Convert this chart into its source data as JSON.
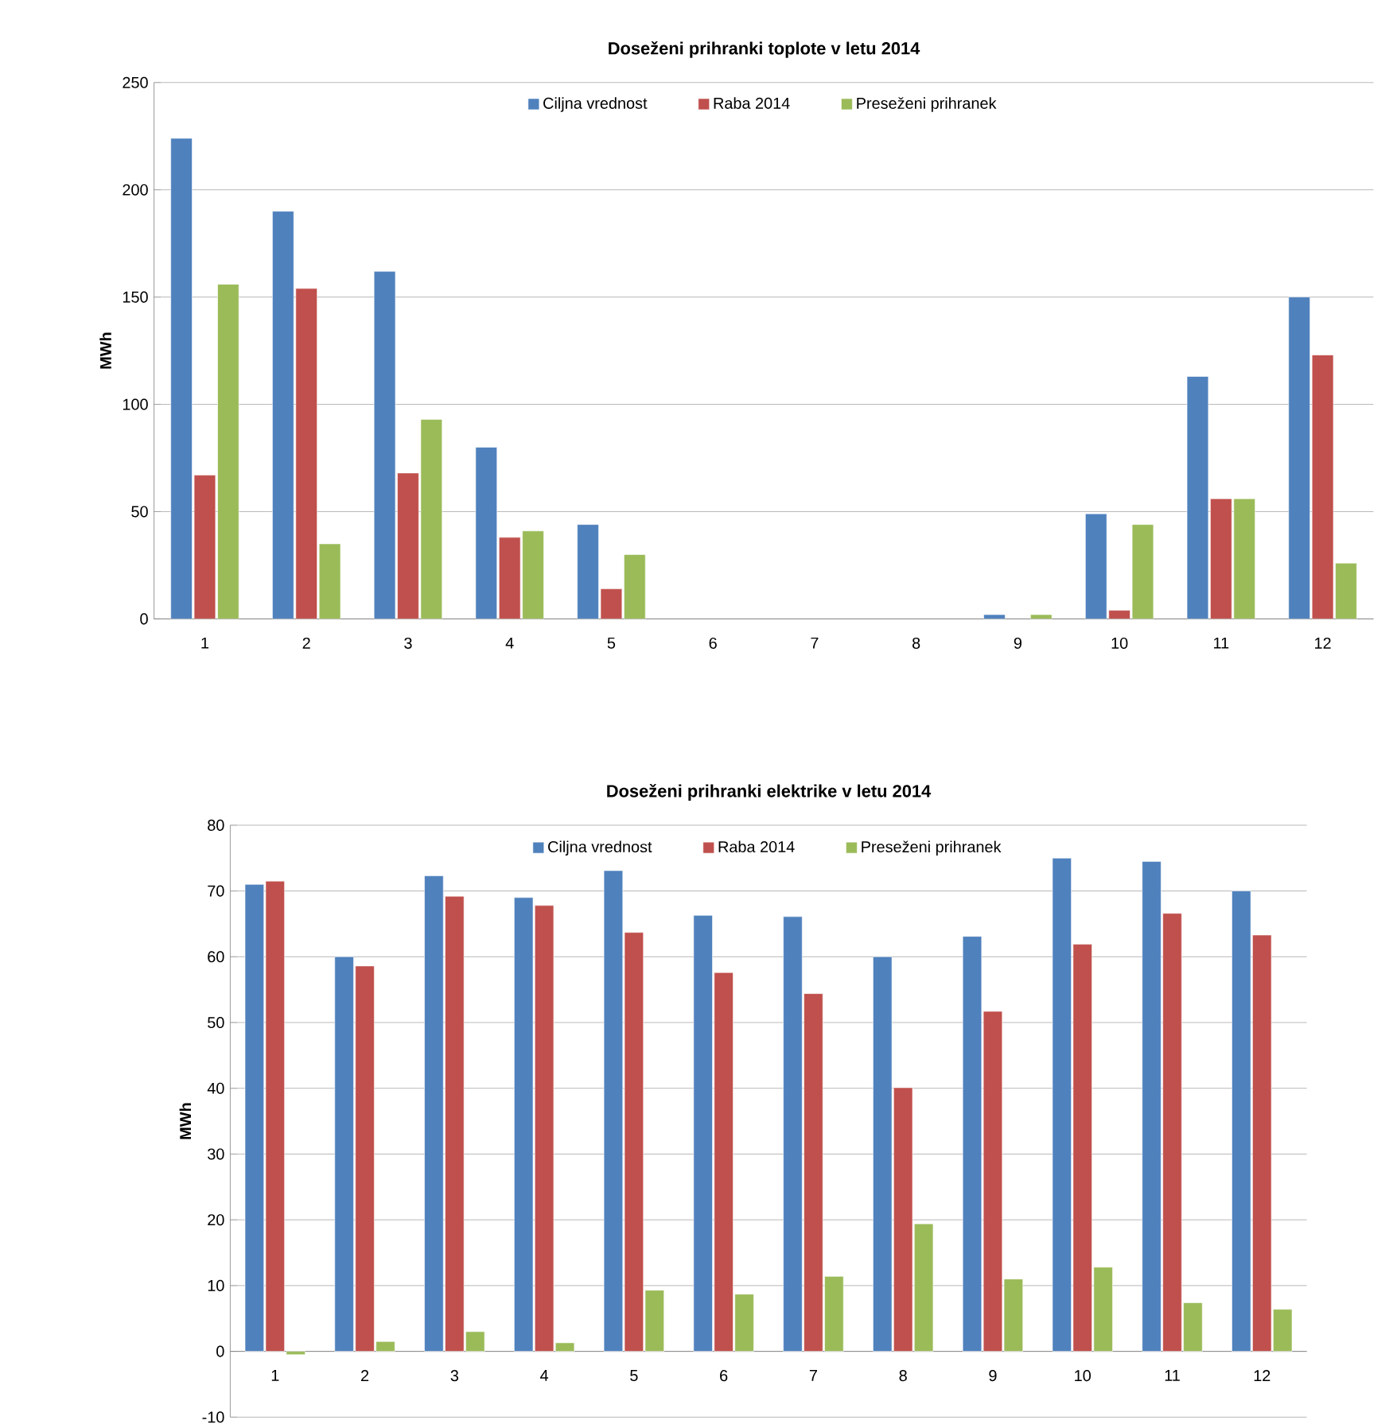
{
  "chart_data": [
    {
      "type": "bar",
      "title": "Doseženi prihranki  toplote v letu 2014",
      "ylabel": "MWh",
      "categories": [
        "1",
        "2",
        "3",
        "4",
        "5",
        "6",
        "7",
        "8",
        "9",
        "10",
        "11",
        "12"
      ],
      "series": [
        {
          "name": "Ciljna vrednost",
          "color": "#4f81bd",
          "values": [
            224,
            190,
            162,
            80,
            44,
            null,
            null,
            null,
            2,
            49,
            113,
            150
          ]
        },
        {
          "name": "Raba 2014",
          "color": "#c0504d",
          "values": [
            67,
            154,
            68,
            38,
            14,
            null,
            null,
            null,
            null,
            4,
            56,
            123
          ]
        },
        {
          "name": "Preseženi prihranek",
          "color": "#9bbb59",
          "values": [
            156,
            35,
            93,
            41,
            30,
            null,
            null,
            null,
            2,
            44,
            56,
            26
          ]
        }
      ],
      "ylim": [
        0,
        250
      ],
      "yticks": [
        0,
        50,
        100,
        150,
        200,
        250
      ],
      "grid": "y",
      "legend": "top"
    },
    {
      "type": "bar",
      "title": "Doseženi prihranki  elektrike v letu 2014",
      "ylabel": "MWh",
      "categories": [
        "1",
        "2",
        "3",
        "4",
        "5",
        "6",
        "7",
        "8",
        "9",
        "10",
        "11",
        "12"
      ],
      "series": [
        {
          "name": "Ciljna vrednost",
          "color": "#4f81bd",
          "values": [
            71,
            60,
            72.3,
            69,
            73.1,
            66.3,
            66.1,
            60,
            63.1,
            75,
            74.5,
            70
          ]
        },
        {
          "name": "Raba 2014",
          "color": "#c0504d",
          "values": [
            71.5,
            58.6,
            69.2,
            67.8,
            63.7,
            57.6,
            54.4,
            40.1,
            51.7,
            61.9,
            66.6,
            63.3
          ]
        },
        {
          "name": "Preseženi prihranek",
          "color": "#9bbb59",
          "values": [
            -0.5,
            1.5,
            3,
            1.3,
            9.3,
            8.7,
            11.4,
            19.4,
            11,
            12.8,
            7.4,
            6.4
          ]
        }
      ],
      "ylim": [
        -10,
        80
      ],
      "yticks": [
        -10,
        0,
        10,
        20,
        30,
        40,
        50,
        60,
        70,
        80
      ],
      "grid": "y",
      "legend": "top"
    }
  ]
}
